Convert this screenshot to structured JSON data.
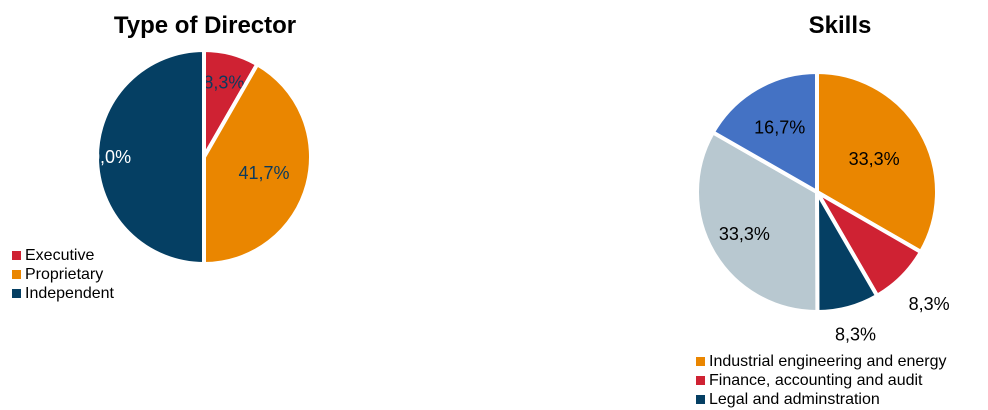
{
  "chart_data": [
    {
      "type": "pie",
      "title": "Type of Director",
      "categories": [
        "Executive",
        "Proprietary",
        "Independent"
      ],
      "values": [
        8.3,
        41.7,
        50.0
      ],
      "labels": [
        "8,3%",
        "41,7%",
        "50,0%"
      ],
      "colors": [
        "#cf2233",
        "#ea8600",
        "#053f63"
      ],
      "label_colors": [
        "#0b3a5e",
        "#0b3a5e",
        "#ffffff"
      ],
      "legend_position": "bottom-left"
    },
    {
      "type": "pie",
      "title": "Skills",
      "categories": [
        "Industrial engineering and energy",
        "Finance, accounting and audit",
        "Legal and adminstration",
        "",
        ""
      ],
      "values": [
        33.3,
        8.3,
        8.3,
        33.3,
        16.7
      ],
      "labels": [
        "33,3%",
        "8,3%",
        "8,3%",
        "33,3%",
        "16,7%"
      ],
      "colors": [
        "#ea8600",
        "#cf2233",
        "#053f63",
        "#b8c8d0",
        "#4472c4"
      ],
      "label_colors": [
        "#000000",
        "#000000",
        "#000000",
        "#000000",
        "#000000"
      ],
      "legend_position": "bottom"
    }
  ]
}
